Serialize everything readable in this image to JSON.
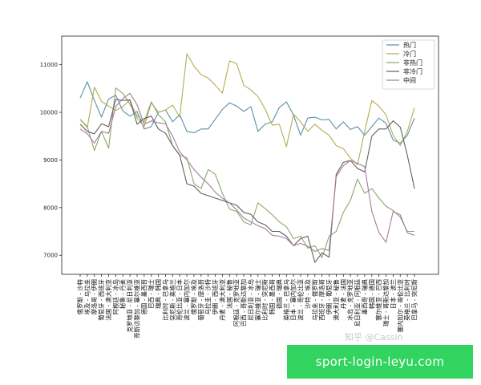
{
  "chart_data": {
    "type": "line",
    "title": "",
    "xlabel": "",
    "ylabel": "",
    "ylim": [
      6600,
      11600
    ],
    "yticks": [
      7000,
      8000,
      9000,
      10000,
      11000
    ],
    "grid": false,
    "legend_position": "top-right",
    "categories": [
      "俄罗斯 - 沙特",
      "埃及 - 乌拉圭",
      "摩洛哥 - 伊朗",
      "葡萄牙 - 西班牙",
      "法国 - 澳大利亚",
      "阿根廷 - 冰岛",
      "秘鲁 - 丹麦",
      "克罗地亚 - 尼日利亚",
      "哥斯达黎加 - 塞尔维亚",
      "德国 - 墨西哥",
      "巴西 - 瑞士",
      "瑞典 - 韩国",
      "比利时 - 巴拿马",
      "突尼斯 - 英格兰",
      "哥伦比亚 - 日本",
      "波兰 - 塞内加尔",
      "俄罗斯 - 埃及",
      "葡萄牙 - 摩洛哥",
      "乌拉圭 - 沙特",
      "伊朗 - 西班牙",
      "丹麦 - 澳大利亚",
      "法国 - 秘鲁",
      "阿根廷 - 克罗地亚",
      "巴西 - 哥斯达黎加",
      "尼日利亚 - 冰岛",
      "塞尔维亚 - 瑞士",
      "比利时 - 突尼斯",
      "韩国 - 墨西哥",
      "德国 - 瑞典",
      "英格兰 - 巴拿马",
      "日本 - 塞内加尔",
      "波兰 - 哥伦比亚",
      "沙特 - 埃及",
      "乌拉圭 - 俄罗斯",
      "西班牙 - 摩洛哥",
      "伊朗 - 葡萄牙",
      "澳大利亚 - 秘鲁",
      "丹麦 - 法国",
      "冰岛 - 克罗地亚",
      "尼日利亚 - 阿根廷",
      "墨西哥 - 瑞典",
      "韩国 - 德国",
      "塞尔维亚 - 巴西",
      "瑞士 - 哥斯达黎加",
      "日本 - 波兰",
      "塞内加尔 - 哥伦比亚",
      "英格兰 - 比利时",
      "巴拿马 - 突尼斯"
    ],
    "series": [
      {
        "name": "热门",
        "color": "#5b8fa8",
        "values": [
          10300,
          10640,
          10250,
          9900,
          10280,
          10360,
          10030,
          9920,
          10020,
          9650,
          9700,
          10000,
          10050,
          9800,
          9950,
          9600,
          9570,
          9650,
          9650,
          9860,
          10060,
          10200,
          10130,
          10020,
          10120,
          9600,
          9750,
          9800,
          10100,
          10220,
          9940,
          9520,
          9880,
          9900,
          9840,
          9850,
          9650,
          9800,
          9640,
          9700,
          9520,
          9700,
          9880,
          9770,
          9420,
          9350,
          9520,
          9880
        ]
      },
      {
        "name": "冷门",
        "color": "#b3ac52",
        "values": [
          9850,
          9680,
          10530,
          10230,
          10130,
          10040,
          10120,
          10260,
          9880,
          9700,
          10200,
          10000,
          10050,
          10150,
          9900,
          11230,
          10970,
          10790,
          10720,
          10570,
          10400,
          11080,
          11020,
          10570,
          10470,
          10330,
          10070,
          9730,
          9750,
          9280,
          9960,
          9800,
          9600,
          9750,
          9620,
          9520,
          9300,
          9240,
          9040,
          8900,
          9600,
          10250,
          10130,
          9950,
          9520,
          9300,
          9600,
          10100
        ]
      },
      {
        "name": "非热门",
        "color": "#8aa86b",
        "values": [
          9850,
          9700,
          9200,
          9600,
          9250,
          10510,
          10400,
          10170,
          9930,
          9800,
          10220,
          9950,
          9800,
          9300,
          9100,
          9050,
          8500,
          8400,
          8800,
          8700,
          8300,
          7970,
          7920,
          7700,
          7640,
          8100,
          7980,
          7850,
          7700,
          7600,
          7350,
          7400,
          7150,
          7200,
          6950,
          7400,
          7500,
          7900,
          8150,
          8600,
          8300,
          8400,
          8200,
          8030,
          7940,
          7800,
          7500,
          7500
        ]
      },
      {
        "name": "非冷门",
        "color": "#606060",
        "values": [
          9750,
          9600,
          9550,
          9760,
          9700,
          10270,
          10250,
          10260,
          9750,
          9870,
          9920,
          9650,
          9560,
          9300,
          9100,
          8500,
          8450,
          8300,
          8250,
          8200,
          8150,
          8100,
          8050,
          7900,
          7860,
          7700,
          7640,
          7500,
          7500,
          7400,
          7200,
          7350,
          7400,
          6850,
          7050,
          6960,
          8700,
          8950,
          8990,
          8820,
          8750,
          9500,
          9650,
          9650,
          9820,
          9690,
          9100,
          8400
        ]
      },
      {
        "name": "中间",
        "color": "#a47c9d",
        "values": [
          9650,
          9550,
          9350,
          9600,
          9560,
          10120,
          10290,
          10400,
          10160,
          9750,
          9820,
          9780,
          9760,
          9500,
          9170,
          9000,
          8800,
          8640,
          8500,
          8320,
          8200,
          8100,
          7950,
          7780,
          7700,
          7620,
          7560,
          7420,
          7400,
          7350,
          7200,
          7250,
          7190,
          7080,
          7140,
          7100,
          8650,
          8880,
          8990,
          8930,
          8860,
          7920,
          7480,
          7270,
          7920,
          7850,
          7470,
          7420
        ]
      }
    ]
  },
  "watermark": "知乎 @Cassin",
  "banner": {
    "text": "sport-login-leyu.com"
  }
}
